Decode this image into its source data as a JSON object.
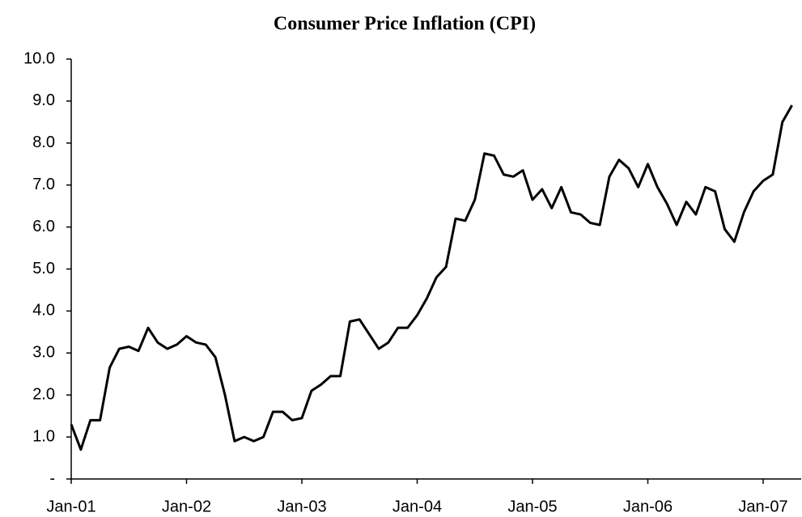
{
  "chart_data": {
    "type": "line",
    "title": "Consumer Price Inflation (CPI)",
    "categories": [
      "Jan-01",
      null,
      null,
      null,
      null,
      null,
      null,
      null,
      null,
      null,
      null,
      null,
      "Jan-02",
      null,
      null,
      null,
      null,
      null,
      null,
      null,
      null,
      null,
      null,
      null,
      "Jan-03",
      null,
      null,
      null,
      null,
      null,
      null,
      null,
      null,
      null,
      null,
      null,
      "Jan-04",
      null,
      null,
      null,
      null,
      null,
      null,
      null,
      null,
      null,
      null,
      null,
      "Jan-05",
      null,
      null,
      null,
      null,
      null,
      null,
      null,
      null,
      null,
      null,
      null,
      "Jan-06",
      null,
      null,
      null,
      null,
      null,
      null,
      null,
      null,
      null,
      null,
      null,
      "Jan-07",
      null,
      null,
      null
    ],
    "series": [
      {
        "name": "CPI",
        "color": "#000000",
        "values": [
          1.3,
          0.7,
          1.4,
          1.4,
          2.65,
          3.1,
          3.15,
          3.05,
          3.6,
          3.25,
          3.1,
          3.2,
          3.4,
          3.25,
          3.2,
          2.9,
          2.0,
          0.9,
          1.0,
          0.9,
          1.0,
          1.6,
          1.6,
          1.4,
          1.45,
          2.1,
          2.25,
          2.45,
          2.45,
          3.75,
          3.8,
          3.45,
          3.1,
          3.25,
          3.6,
          3.6,
          3.9,
          4.3,
          4.8,
          5.05,
          6.2,
          6.15,
          6.65,
          7.75,
          7.7,
          7.25,
          7.2,
          7.35,
          6.65,
          6.9,
          6.45,
          6.95,
          6.35,
          6.3,
          6.1,
          6.05,
          7.2,
          7.6,
          7.4,
          6.95,
          7.5,
          6.95,
          6.55,
          6.05,
          6.6,
          6.3,
          6.95,
          6.85,
          5.95,
          5.65,
          6.35,
          6.85,
          7.1,
          7.25,
          8.5,
          8.9
        ]
      }
    ],
    "ylim": [
      0,
      10
    ],
    "yticks": [
      {
        "value": 0,
        "label": "-"
      },
      {
        "value": 1,
        "label": "1.0"
      },
      {
        "value": 2,
        "label": "2.0"
      },
      {
        "value": 3,
        "label": "3.0"
      },
      {
        "value": 4,
        "label": "4.0"
      },
      {
        "value": 5,
        "label": "5.0"
      },
      {
        "value": 6,
        "label": "6.0"
      },
      {
        "value": 7,
        "label": "7.0"
      },
      {
        "value": 8,
        "label": "8.0"
      },
      {
        "value": 9,
        "label": "9.0"
      },
      {
        "value": 10,
        "label": "10.0"
      }
    ],
    "grid": false
  }
}
